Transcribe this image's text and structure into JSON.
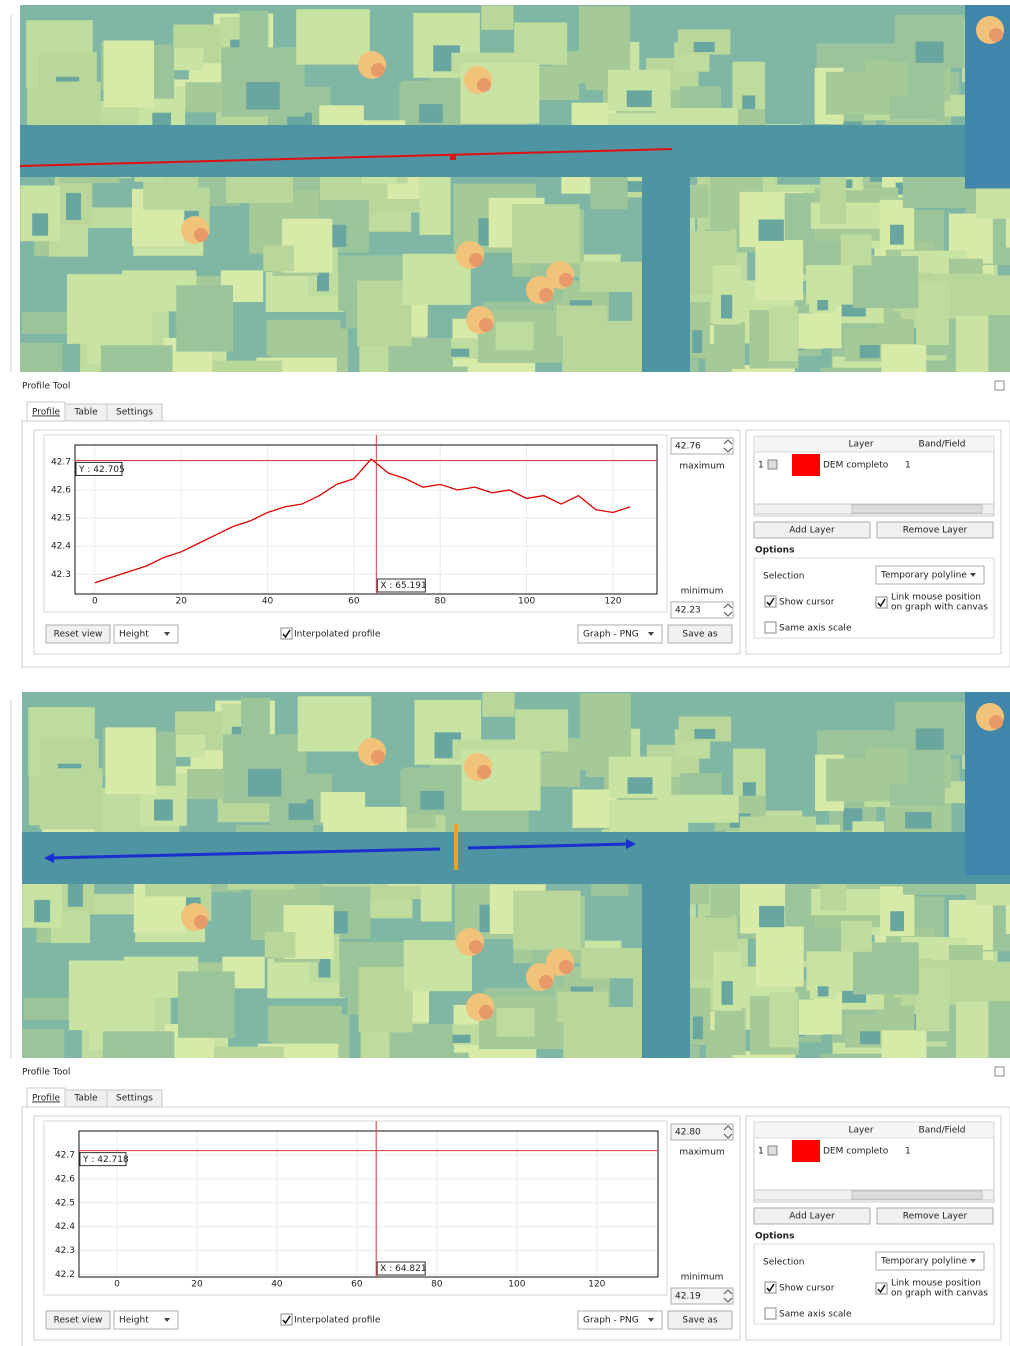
{
  "panels": [
    {
      "title": "Profile Tool",
      "tabs": [
        "Profile",
        "Table",
        "Settings"
      ],
      "maximum_value": "42.76",
      "maximum_label": "maximum",
      "minimum_label": "minimum",
      "minimum_value": "42.23",
      "chart_data": {
        "type": "line",
        "series": [
          {
            "color": "#e00000",
            "x": [
              0,
              4,
              8,
              12,
              16,
              20,
              24,
              28,
              32,
              36,
              40,
              44,
              48,
              52,
              56,
              60,
              64,
              68,
              72,
              76,
              80,
              84,
              88,
              92,
              96,
              100,
              104,
              108,
              112,
              116,
              120,
              124
            ],
            "values": [
              42.27,
              42.29,
              42.31,
              42.33,
              42.36,
              42.38,
              42.41,
              42.44,
              42.47,
              42.49,
              42.52,
              42.54,
              42.55,
              42.58,
              42.62,
              42.64,
              42.71,
              42.66,
              42.64,
              42.61,
              42.62,
              42.6,
              42.61,
              42.59,
              42.6,
              42.57,
              42.58,
              42.55,
              42.58,
              42.53,
              42.52,
              42.54
            ]
          }
        ],
        "xlim": [
          -4.6,
          130.2
        ],
        "ylim": [
          42.23,
          42.76
        ],
        "xticks": [
          0,
          20,
          40,
          60,
          80,
          100,
          120
        ],
        "yticks": [
          42.3,
          42.4,
          42.5,
          42.6,
          42.7
        ],
        "grid": true,
        "cursor": {
          "x": 65.191,
          "y": 42.705,
          "x_label": "X : 65.191",
          "y_label": "Y : 42.705"
        }
      },
      "controls": {
        "reset": "Reset view",
        "mode": "Height",
        "interpolated": "Interpolated profile",
        "export": "Graph - PNG",
        "save": "Save as"
      },
      "layers": {
        "headers": [
          "Layer",
          "Band/Field"
        ],
        "rows": [
          [
            "1",
            "DEM completo",
            "1"
          ]
        ],
        "add": "Add Layer",
        "remove": "Remove Layer"
      },
      "options": {
        "title": "Options",
        "selection_label": "Selection",
        "selection": "Temporary polyline",
        "show_cursor": "Show cursor",
        "link": [
          "Link mouse position",
          "on graph with canvas"
        ],
        "same_scale": "Same axis scale"
      }
    },
    {
      "title": "Profile Tool",
      "tabs": [
        "Profile",
        "Table",
        "Settings"
      ],
      "maximum_value": "42.80",
      "maximum_label": "maximum",
      "minimum_label": "minimum",
      "minimum_value": "42.19",
      "chart_data": {
        "type": "line",
        "series": [],
        "xlim": [
          -9.5,
          135.3
        ],
        "ylim": [
          42.19,
          42.8
        ],
        "xticks": [
          0,
          20,
          40,
          60,
          80,
          100,
          120
        ],
        "yticks": [
          42.2,
          42.3,
          42.4,
          42.5,
          42.6,
          42.7
        ],
        "grid": true,
        "cursor": {
          "x": 64.821,
          "y": 42.718,
          "x_label": "X : 64.821",
          "y_label": "Y : 42.718"
        }
      },
      "controls": {
        "reset": "Reset view",
        "mode": "Height",
        "interpolated": "Interpolated profile",
        "export": "Graph - PNG",
        "save": "Save as"
      },
      "layers": {
        "headers": [
          "Layer",
          "Band/Field"
        ],
        "rows": [
          [
            "1",
            "DEM completo",
            "1"
          ]
        ],
        "add": "Add Layer",
        "remove": "Remove Layer"
      },
      "options": {
        "title": "Options",
        "selection_label": "Selection",
        "selection": "Temporary polyline",
        "show_cursor": "Show cursor",
        "link": [
          "Link mouse position",
          "on graph with canvas"
        ],
        "same_scale": "Same axis scale"
      }
    }
  ]
}
